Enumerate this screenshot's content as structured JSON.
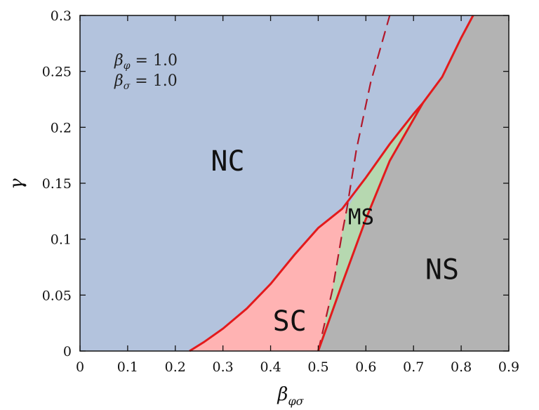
{
  "chart_data": {
    "type": "area",
    "title": "",
    "xlabel": {
      "main": "β",
      "sub": "φσ"
    },
    "ylabel": "γ",
    "xlim": [
      0,
      0.9
    ],
    "ylim": [
      0,
      0.3
    ],
    "xticks": [
      "0",
      "0.1",
      "0.2",
      "0.3",
      "0.4",
      "0.5",
      "0.6",
      "0.7",
      "0.8",
      "0.9"
    ],
    "yticks": [
      "0",
      "0.05",
      "0.1",
      "0.15",
      "0.2",
      "0.25",
      "0.3"
    ],
    "xtick_values": [
      0,
      0.1,
      0.2,
      0.3,
      0.4,
      0.5,
      0.6,
      0.7,
      0.8,
      0.9
    ],
    "ytick_values": [
      0,
      0.05,
      0.1,
      0.15,
      0.2,
      0.25,
      0.3
    ],
    "annotations": [
      {
        "main": "β",
        "sub": "φ",
        "rest": " = 1.0"
      },
      {
        "main": "β",
        "sub": "σ",
        "rest": " = 1.0"
      }
    ],
    "regions": [
      {
        "name": "NC",
        "color": "#b3c3dd",
        "label_at": [
          0.31,
          0.17
        ]
      },
      {
        "name": "SC",
        "color": "#ffb3b3",
        "label_at": [
          0.44,
          0.027
        ]
      },
      {
        "name": "MS",
        "color": "#b6d8b0",
        "label_at": [
          0.59,
          0.122
        ]
      },
      {
        "name": "NS",
        "color": "#b3b3b3",
        "label_at": [
          0.76,
          0.073
        ]
      }
    ],
    "boundaries": {
      "upper_solid": {
        "color": "#e31a1c",
        "points": [
          [
            0.23,
            0
          ],
          [
            0.26,
            0.008
          ],
          [
            0.3,
            0.02
          ],
          [
            0.35,
            0.038
          ],
          [
            0.4,
            0.06
          ],
          [
            0.45,
            0.086
          ],
          [
            0.5,
            0.11
          ],
          [
            0.55,
            0.127
          ],
          [
            0.6,
            0.155
          ],
          [
            0.65,
            0.185
          ],
          [
            0.7,
            0.212
          ],
          [
            0.72,
            0.222
          ],
          [
            0.76,
            0.245
          ],
          [
            0.8,
            0.28
          ],
          [
            0.825,
            0.3
          ]
        ]
      },
      "lower_solid": {
        "color": "#e31a1c",
        "points": [
          [
            0.5,
            0
          ],
          [
            0.55,
            0.06
          ],
          [
            0.6,
            0.118
          ],
          [
            0.65,
            0.17
          ],
          [
            0.72,
            0.222
          ]
        ]
      },
      "dashed": {
        "color": "#b2182b",
        "points": [
          [
            0.5,
            0
          ],
          [
            0.53,
            0.055
          ],
          [
            0.55,
            0.105
          ],
          [
            0.56,
            0.127
          ],
          [
            0.58,
            0.18
          ],
          [
            0.61,
            0.24
          ],
          [
            0.65,
            0.3
          ]
        ]
      }
    },
    "grid": false,
    "legend": "none"
  }
}
